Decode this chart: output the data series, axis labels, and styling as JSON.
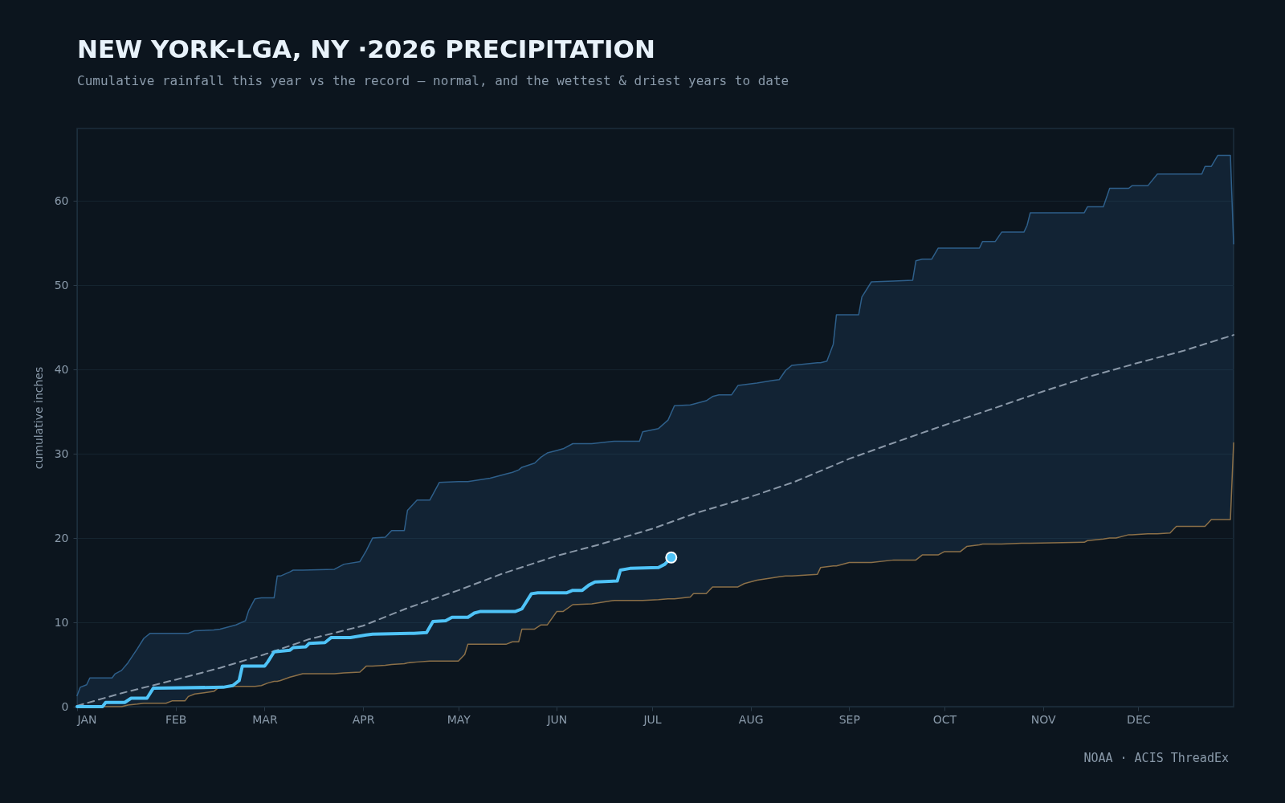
{
  "chart_data": {
    "type": "line",
    "title": "NEW YORK-LGA, NY ·2026 PRECIPITATION",
    "subtitle": "Cumulative rainfall this year vs the record — normal, and the wettest & driest years to date",
    "ylabel": "cumulative inches",
    "annotations": [
      "NOAA · ACIS ThreadEx"
    ],
    "xlim": [
      "2026-01-01",
      "2026-12-31"
    ],
    "xticks": [
      {
        "value": "2026-01-01",
        "label": "JAN"
      },
      {
        "value": "2026-02-01",
        "label": "FEB"
      },
      {
        "value": "2026-03-01",
        "label": "MAR"
      },
      {
        "value": "2026-04-01",
        "label": "APR"
      },
      {
        "value": "2026-05-01",
        "label": "MAY"
      },
      {
        "value": "2026-06-01",
        "label": "JUN"
      },
      {
        "value": "2026-07-01",
        "label": "JUL"
      },
      {
        "value": "2026-08-01",
        "label": "AUG"
      },
      {
        "value": "2026-09-01",
        "label": "SEP"
      },
      {
        "value": "2026-10-01",
        "label": "OCT"
      },
      {
        "value": "2026-11-01",
        "label": "NOV"
      },
      {
        "value": "2026-12-01",
        "label": "DEC"
      }
    ],
    "ylim": [
      0,
      68.6
    ],
    "yticks": [
      0,
      10,
      20,
      30,
      40,
      50,
      60
    ],
    "grid": "y",
    "series": [
      {
        "color": "#2e5f8a",
        "x": [
          "2026-01-01",
          "2026-01-02",
          "2026-01-04",
          "2026-01-05",
          "2026-01-12",
          "2026-01-13",
          "2026-01-15",
          "2026-01-17",
          "2026-01-20",
          "2026-01-22",
          "2026-01-24",
          "2026-01-29",
          "2026-01-31",
          "2026-02-04",
          "2026-02-05",
          "2026-02-07",
          "2026-02-13",
          "2026-02-15",
          "2026-02-20",
          "2026-02-23",
          "2026-02-24",
          "2026-02-26",
          "2026-02-28",
          "2026-03-02",
          "2026-03-04",
          "2026-03-05",
          "2026-03-06",
          "2026-03-09",
          "2026-03-10",
          "2026-03-13",
          "2026-03-23",
          "2026-03-26",
          "2026-03-31",
          "2026-04-02",
          "2026-04-04",
          "2026-04-08",
          "2026-04-10",
          "2026-04-14",
          "2026-04-15",
          "2026-04-18",
          "2026-04-22",
          "2026-04-25",
          "2026-05-01",
          "2026-05-03",
          "2026-05-04",
          "2026-05-11",
          "2026-05-16",
          "2026-05-18",
          "2026-05-20",
          "2026-05-21",
          "2026-05-25",
          "2026-05-27",
          "2026-05-29",
          "2026-06-01",
          "2026-06-03",
          "2026-06-06",
          "2026-06-12",
          "2026-06-19",
          "2026-06-27",
          "2026-06-28",
          "2026-07-03",
          "2026-07-06",
          "2026-07-08",
          "2026-07-13",
          "2026-07-14",
          "2026-07-18",
          "2026-07-20",
          "2026-07-22",
          "2026-07-26",
          "2026-07-28",
          "2026-07-30",
          "2026-08-03",
          "2026-08-08",
          "2026-08-10",
          "2026-08-12",
          "2026-08-14",
          "2026-08-22",
          "2026-08-23",
          "2026-08-25",
          "2026-08-27",
          "2026-08-28",
          "2026-09-01",
          "2026-09-04",
          "2026-09-05",
          "2026-09-08",
          "2026-09-15",
          "2026-09-21",
          "2026-09-22",
          "2026-09-24",
          "2026-09-27",
          "2026-09-29",
          "2026-10-01",
          "2026-10-06",
          "2026-10-08",
          "2026-10-12",
          "2026-10-13",
          "2026-10-17",
          "2026-10-19",
          "2026-10-26",
          "2026-10-27",
          "2026-10-28",
          "2026-11-14",
          "2026-11-15",
          "2026-11-20",
          "2026-11-22",
          "2026-11-24",
          "2026-11-28",
          "2026-11-29",
          "2026-12-04",
          "2026-12-07",
          "2026-12-11",
          "2026-12-12",
          "2026-12-13",
          "2026-12-21",
          "2026-12-22",
          "2026-12-24",
          "2026-12-26",
          "2026-12-30",
          "2026-12-31"
        ],
        "values": [
          1.3,
          2.3,
          2.6,
          3.4,
          3.4,
          3.9,
          4.3,
          5.2,
          6.9,
          8.1,
          8.7,
          8.7,
          8.7,
          8.7,
          8.7,
          9.0,
          9.1,
          9.2,
          9.7,
          10.2,
          11.4,
          12.8,
          12.9,
          12.9,
          12.9,
          15.5,
          15.5,
          16.0,
          16.2,
          16.2,
          16.3,
          16.9,
          17.2,
          18.5,
          20.0,
          20.1,
          20.9,
          20.9,
          23.3,
          24.5,
          24.5,
          26.6,
          26.7,
          26.7,
          26.7,
          27.1,
          27.6,
          27.8,
          28.1,
          28.4,
          28.9,
          29.6,
          30.1,
          30.4,
          30.6,
          31.2,
          31.2,
          31.5,
          31.5,
          32.6,
          33.0,
          34.0,
          35.7,
          35.8,
          35.9,
          36.3,
          36.8,
          37.0,
          37.0,
          38.1,
          38.2,
          38.4,
          38.7,
          38.8,
          39.9,
          40.5,
          40.8,
          40.8,
          41.0,
          43.0,
          46.5,
          46.5,
          46.5,
          48.6,
          50.4,
          50.5,
          50.6,
          52.9,
          53.1,
          53.1,
          54.4,
          54.4,
          54.4,
          54.4,
          54.4,
          55.2,
          55.2,
          56.3,
          56.3,
          57.1,
          58.6,
          58.6,
          59.3,
          59.3,
          61.5,
          61.5,
          61.5,
          61.8,
          61.8,
          63.2,
          63.2,
          63.2,
          63.2,
          63.2,
          64.1,
          64.1,
          65.4,
          65.4,
          54.9
        ],
        "upper": [
          1.3,
          2.3,
          2.6,
          3.4,
          3.4,
          3.9,
          4.3,
          5.2,
          6.9,
          8.1,
          8.7,
          8.7,
          8.7,
          8.7,
          8.7,
          9.0,
          9.1,
          9.2,
          9.7,
          10.2,
          11.4,
          12.8,
          12.9,
          12.9,
          12.9,
          15.5,
          15.5,
          16.0,
          16.2,
          16.2,
          16.3,
          16.9,
          17.2,
          18.5,
          20.0,
          20.1,
          20.9,
          20.9,
          23.3,
          24.5,
          24.5,
          26.6,
          26.7,
          26.7,
          26.7,
          27.1,
          27.6,
          27.8,
          28.1,
          28.4,
          28.9,
          29.6,
          30.1,
          30.4,
          30.6,
          31.2,
          31.2,
          31.5,
          31.5,
          32.6,
          33.0,
          34.0,
          35.7,
          35.8,
          35.9,
          36.3,
          36.8,
          37.0,
          37.0,
          38.1,
          38.2,
          38.4,
          38.7,
          38.8,
          39.9,
          40.5,
          40.8,
          40.8,
          41.0,
          43.0,
          46.5,
          46.5,
          46.5,
          48.6,
          50.4,
          50.5,
          50.6,
          52.9,
          53.1,
          53.1,
          54.4,
          54.4,
          54.4,
          54.4,
          54.4,
          55.2,
          55.2,
          56.3,
          56.3,
          57.1,
          58.6,
          58.6,
          59.3,
          59.3,
          61.5,
          61.5,
          61.5,
          61.8,
          61.8,
          63.2,
          63.2,
          63.2,
          63.2,
          63.2,
          64.1,
          64.1,
          65.4,
          65.4,
          54.9
        ],
        "lower": [
          0,
          0,
          0,
          0,
          0,
          0,
          0,
          0.2,
          0.3,
          0.4,
          0.4,
          0.4,
          0.7,
          0.7,
          1.2,
          1.5,
          1.8,
          2.4,
          2.4,
          2.4,
          2.4,
          2.4,
          2.5,
          2.8,
          3.0,
          3.0,
          3.1,
          3.5,
          3.6,
          3.9,
          3.9,
          4.0,
          4.1,
          4.8,
          4.8,
          4.9,
          5.0,
          5.1,
          5.2,
          5.3,
          5.4,
          5.4,
          5.4,
          6.2,
          7.4,
          7.4,
          7.4,
          7.7,
          7.7,
          9.2,
          9.2,
          9.7,
          9.7,
          11.3,
          11.3,
          12.1,
          12.2,
          12.6,
          12.6,
          12.6,
          12.7,
          12.8,
          12.8,
          13.0,
          13.4,
          13.4,
          14.2,
          14.2,
          14.2,
          14.2,
          14.6,
          15.0,
          15.3,
          15.4,
          15.5,
          15.5,
          15.7,
          16.5,
          16.6,
          16.7,
          16.7,
          17.1,
          17.1,
          17.1,
          17.1,
          17.4,
          17.4,
          17.4,
          18.0,
          18.0,
          18.0,
          18.4,
          18.4,
          19.0,
          19.2,
          19.3,
          19.3,
          19.3,
          19.4,
          19.4,
          19.4,
          19.5,
          19.7,
          19.9,
          20.0,
          20.0,
          20.4,
          20.4,
          20.5,
          20.5,
          20.6,
          21.0,
          21.4,
          21.4,
          21.4,
          22.2,
          22.2,
          22.2,
          31.3
        ]
      },
      {
        "color": "#8c7048",
        "x": [
          "2026-01-05",
          "2026-01-12",
          "2026-01-13",
          "2026-01-15",
          "2026-01-17",
          "2026-01-20",
          "2026-01-22",
          "2026-01-24",
          "2026-01-29",
          "2026-01-31",
          "2026-02-04",
          "2026-02-05",
          "2026-02-07",
          "2026-02-13",
          "2026-02-15",
          "2026-02-20",
          "2026-02-23",
          "2026-02-24",
          "2026-02-26",
          "2026-02-28",
          "2026-03-02",
          "2026-03-04",
          "2026-03-05",
          "2026-03-06",
          "2026-03-09",
          "2026-03-10",
          "2026-03-13",
          "2026-03-23",
          "2026-03-26",
          "2026-03-31",
          "2026-04-02",
          "2026-04-04",
          "2026-04-08",
          "2026-04-10",
          "2026-04-14",
          "2026-04-15",
          "2026-04-18",
          "2026-04-22",
          "2026-04-25",
          "2026-05-01",
          "2026-05-03",
          "2026-05-04",
          "2026-05-11",
          "2026-05-16",
          "2026-05-18",
          "2026-05-20",
          "2026-05-21",
          "2026-05-25",
          "2026-05-27",
          "2026-05-29",
          "2026-06-01",
          "2026-06-03",
          "2026-06-06",
          "2026-06-12",
          "2026-06-19",
          "2026-06-27",
          "2026-06-28",
          "2026-07-03",
          "2026-07-06",
          "2026-07-08",
          "2026-07-13",
          "2026-07-14",
          "2026-07-18",
          "2026-07-20",
          "2026-07-22",
          "2026-07-26",
          "2026-07-28",
          "2026-07-30",
          "2026-08-03",
          "2026-08-08",
          "2026-08-10",
          "2026-08-12",
          "2026-08-14",
          "2026-08-22",
          "2026-08-23",
          "2026-08-25",
          "2026-08-27",
          "2026-08-28",
          "2026-09-01",
          "2026-09-04",
          "2026-09-05",
          "2026-09-08",
          "2026-09-15",
          "2026-09-21",
          "2026-09-22",
          "2026-09-24",
          "2026-09-27",
          "2026-09-29",
          "2026-10-01",
          "2026-10-06",
          "2026-10-08",
          "2026-10-12",
          "2026-10-13",
          "2026-10-17",
          "2026-10-19",
          "2026-10-26",
          "2026-10-27",
          "2026-10-28",
          "2026-11-14",
          "2026-11-15",
          "2026-11-20",
          "2026-11-22",
          "2026-11-24",
          "2026-11-28",
          "2026-11-29",
          "2026-12-04",
          "2026-12-07",
          "2026-12-11",
          "2026-12-12",
          "2026-12-13",
          "2026-12-21",
          "2026-12-22",
          "2026-12-24",
          "2026-12-26",
          "2026-12-30",
          "2026-12-31"
        ],
        "values": [
          0,
          0,
          0,
          0,
          0.2,
          0.3,
          0.4,
          0.4,
          0.4,
          0.7,
          0.7,
          1.2,
          1.5,
          1.8,
          2.4,
          2.4,
          2.4,
          2.4,
          2.4,
          2.5,
          2.8,
          3.0,
          3.0,
          3.1,
          3.5,
          3.6,
          3.9,
          3.9,
          4.0,
          4.1,
          4.8,
          4.8,
          4.9,
          5.0,
          5.1,
          5.2,
          5.3,
          5.4,
          5.4,
          5.4,
          6.2,
          7.4,
          7.4,
          7.4,
          7.7,
          7.7,
          9.2,
          9.2,
          9.7,
          9.7,
          11.3,
          11.3,
          12.1,
          12.2,
          12.6,
          12.6,
          12.6,
          12.7,
          12.8,
          12.8,
          13.0,
          13.4,
          13.4,
          14.2,
          14.2,
          14.2,
          14.2,
          14.6,
          15.0,
          15.3,
          15.4,
          15.5,
          15.5,
          15.7,
          16.5,
          16.6,
          16.7,
          16.7,
          17.1,
          17.1,
          17.1,
          17.1,
          17.4,
          17.4,
          17.4,
          18.0,
          18.0,
          18.0,
          18.4,
          18.4,
          19.0,
          19.2,
          19.3,
          19.3,
          19.3,
          19.4,
          19.4,
          19.4,
          19.5,
          19.7,
          19.9,
          20.0,
          20.0,
          20.4,
          20.4,
          20.5,
          20.5,
          20.6,
          21.0,
          21.4,
          21.4,
          21.4,
          22.2,
          22.2,
          22.2,
          31.3
        ]
      },
      {
        "color": "#8a98a8",
        "line_style": "dashed",
        "x": [
          "2026-01-01",
          "2026-01-15",
          "2026-02-01",
          "2026-02-15",
          "2026-03-01",
          "2026-03-15",
          "2026-04-01",
          "2026-04-15",
          "2026-05-01",
          "2026-05-15",
          "2026-06-01",
          "2026-06-15",
          "2026-07-01",
          "2026-07-15",
          "2026-08-01",
          "2026-08-15",
          "2026-09-01",
          "2026-09-15",
          "2026-10-01",
          "2026-10-15",
          "2026-11-01",
          "2026-11-15",
          "2026-12-01",
          "2026-12-15",
          "2026-12-31"
        ],
        "values": [
          0.1,
          1.6,
          3.2,
          4.6,
          6.2,
          8.0,
          9.6,
          11.7,
          13.8,
          15.8,
          17.9,
          19.3,
          21.1,
          23.0,
          24.9,
          26.7,
          29.4,
          31.3,
          33.4,
          35.2,
          37.4,
          39.1,
          40.8,
          42.2,
          44.1
        ]
      },
      {
        "color": "#4fc3f7",
        "x": [
          "2026-01-01",
          "2026-01-09",
          "2026-01-10",
          "2026-01-16",
          "2026-01-18",
          "2026-01-23",
          "2026-01-25",
          "2026-02-16",
          "2026-02-19",
          "2026-02-21",
          "2026-02-22",
          "2026-03-01",
          "2026-03-02",
          "2026-03-04",
          "2026-03-09",
          "2026-03-10",
          "2026-03-14",
          "2026-03-15",
          "2026-03-20",
          "2026-03-22",
          "2026-03-28",
          "2026-04-02",
          "2026-04-04",
          "2026-04-17",
          "2026-04-21",
          "2026-04-23",
          "2026-04-27",
          "2026-04-29",
          "2026-05-04",
          "2026-05-06",
          "2026-05-08",
          "2026-05-19",
          "2026-05-21",
          "2026-05-24",
          "2026-05-26",
          "2026-06-04",
          "2026-06-06",
          "2026-06-09",
          "2026-06-11",
          "2026-06-13",
          "2026-06-20",
          "2026-06-21",
          "2026-06-24",
          "2026-07-03",
          "2026-07-05",
          "2026-07-07"
        ],
        "values": [
          0,
          0,
          0.5,
          0.5,
          1.0,
          1.0,
          2.2,
          2.3,
          2.5,
          3.1,
          4.8,
          4.8,
          5.3,
          6.5,
          6.7,
          7.0,
          7.1,
          7.5,
          7.6,
          8.2,
          8.2,
          8.5,
          8.6,
          8.7,
          8.8,
          10.1,
          10.2,
          10.6,
          10.6,
          11.1,
          11.3,
          11.3,
          11.6,
          13.4,
          13.5,
          13.5,
          13.8,
          13.8,
          14.4,
          14.8,
          14.9,
          16.2,
          16.4,
          16.5,
          16.9,
          17.7
        ]
      },
      {
        "type": "scatter",
        "color": "#4fc3f7",
        "marker": "circle",
        "x": [
          "2026-07-07"
        ],
        "values": [
          17.7
        ]
      }
    ]
  }
}
